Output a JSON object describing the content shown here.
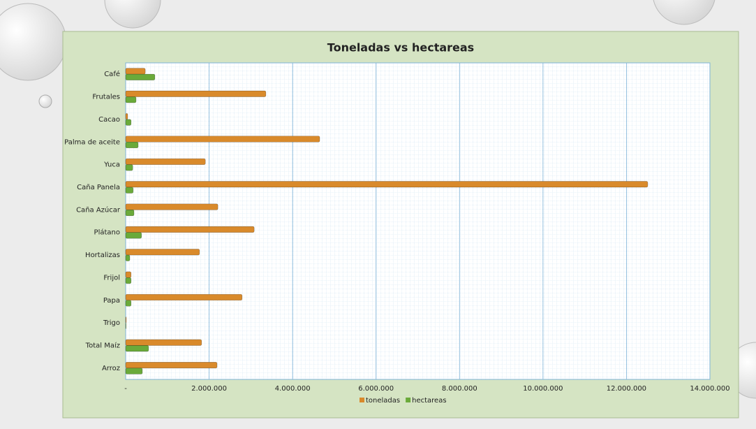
{
  "chart_data": {
    "type": "bar",
    "orientation": "horizontal",
    "title": "Toneladas vs hectareas",
    "categories": [
      "Café",
      "Frutales",
      "Cacao",
      "Palma de aceite",
      "Yuca",
      "Caña Panela",
      "Caña Azúcar",
      "Plátano",
      "Hortalizas",
      "Frijol",
      "Papa",
      "Trigo",
      "Total Maíz",
      "Arroz"
    ],
    "series": [
      {
        "name": "toneladas",
        "color": "#d98a2b",
        "values": [
          470000,
          3360000,
          50000,
          4650000,
          1910000,
          12510000,
          2210000,
          3080000,
          1770000,
          130000,
          2790000,
          15000,
          1820000,
          2190000
        ]
      },
      {
        "name": "hectareas",
        "color": "#6aaa3a",
        "values": [
          700000,
          250000,
          130000,
          300000,
          170000,
          180000,
          200000,
          380000,
          100000,
          130000,
          130000,
          10000,
          550000,
          400000
        ]
      }
    ],
    "xlim": [
      0,
      14000000
    ],
    "xticks": [
      {
        "value": 0,
        "label": "-"
      },
      {
        "value": 2000000,
        "label": "2.000.000"
      },
      {
        "value": 4000000,
        "label": "4.000.000"
      },
      {
        "value": 6000000,
        "label": "6.000.000"
      },
      {
        "value": 8000000,
        "label": "8.000.000"
      },
      {
        "value": 10000000,
        "label": "10.000.000"
      },
      {
        "value": 12000000,
        "label": "12.000.000"
      },
      {
        "value": 14000000,
        "label": "14.000.000"
      }
    ],
    "grid": true,
    "legend": "bottom"
  }
}
